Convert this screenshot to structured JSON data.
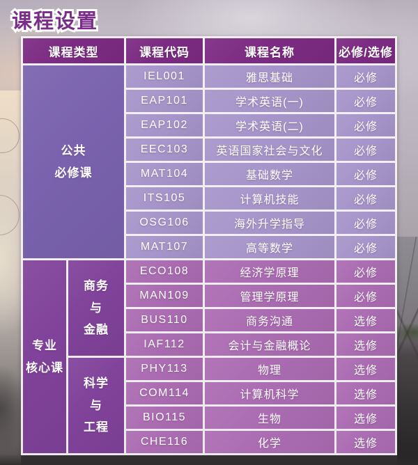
{
  "page_title": "课程设置",
  "colors": {
    "title": "#7b2d8a",
    "header_bg": "#7c2b82",
    "section1_category_bg": "#7a62ae",
    "section1_cell_bg": "#a695ca",
    "section2_category_bg": "#80429a",
    "section2_cell_bg": "#ab6cb2",
    "grid_line": "#f6f2f6",
    "cell_text": "#ffffff"
  },
  "table": {
    "headers": {
      "course_type": "课程类型",
      "course_code": "课程代码",
      "course_name": "课程名称",
      "requirement": "必修/选修"
    },
    "sections": [
      {
        "category": "公共\n必修课",
        "rows": [
          {
            "code": "IEL001",
            "name": "雅思基础",
            "req": "必修"
          },
          {
            "code": "EAP101",
            "name": "学术英语(一)",
            "req": "必修"
          },
          {
            "code": "EAP102",
            "name": "学术英语(二)",
            "req": "必修"
          },
          {
            "code": "EEC103",
            "name": "英语国家社会与文化",
            "req": "必修"
          },
          {
            "code": "MAT104",
            "name": "基础数学",
            "req": "必修"
          },
          {
            "code": "ITS105",
            "name": "计算机技能",
            "req": "必修"
          },
          {
            "code": "OSG106",
            "name": "海外升学指导",
            "req": "必修"
          },
          {
            "code": "MAT107",
            "name": "高等数学",
            "req": "必修"
          }
        ]
      },
      {
        "category": "专业\n核心课",
        "subgroups": [
          {
            "label": "商务\n与\n金融",
            "rows": [
              {
                "code": "ECO108",
                "name": "经济学原理",
                "req": "必修"
              },
              {
                "code": "MAN109",
                "name": "管理学原理",
                "req": "必修"
              },
              {
                "code": "BUS110",
                "name": "商务沟通",
                "req": "选修"
              },
              {
                "code": "IAF112",
                "name": "会计与金融概论",
                "req": "选修"
              }
            ]
          },
          {
            "label": "科学\n与\n工程",
            "rows": [
              {
                "code": "PHY113",
                "name": "物理",
                "req": "选修"
              },
              {
                "code": "COM114",
                "name": "计算机科学",
                "req": "选修"
              },
              {
                "code": "BIO115",
                "name": "生物",
                "req": "选修"
              },
              {
                "code": "CHE116",
                "name": "化学",
                "req": "选修"
              }
            ]
          }
        ]
      }
    ]
  }
}
